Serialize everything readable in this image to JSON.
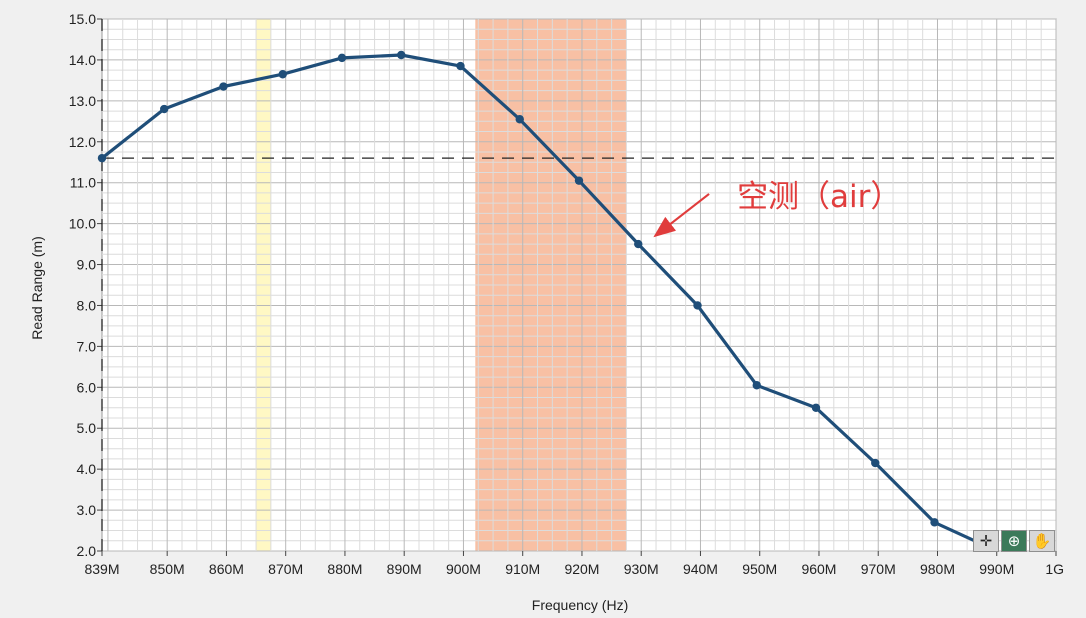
{
  "chart_data": {
    "type": "line",
    "xlabel": "Frequency (Hz)",
    "ylabel": "Read Range (m)",
    "xlim": [
      839,
      1000
    ],
    "ylim": [
      2.0,
      15.0
    ],
    "x_ticks": [
      {
        "value": 839,
        "label": "839M"
      },
      {
        "value": 850,
        "label": "850M"
      },
      {
        "value": 860,
        "label": "860M"
      },
      {
        "value": 870,
        "label": "870M"
      },
      {
        "value": 880,
        "label": "880M"
      },
      {
        "value": 890,
        "label": "890M"
      },
      {
        "value": 900,
        "label": "900M"
      },
      {
        "value": 910,
        "label": "910M"
      },
      {
        "value": 920,
        "label": "920M"
      },
      {
        "value": 930,
        "label": "930M"
      },
      {
        "value": 940,
        "label": "940M"
      },
      {
        "value": 950,
        "label": "950M"
      },
      {
        "value": 960,
        "label": "960M"
      },
      {
        "value": 970,
        "label": "970M"
      },
      {
        "value": 980,
        "label": "980M"
      },
      {
        "value": 990,
        "label": "990M"
      },
      {
        "value": 1000,
        "label": "1G"
      }
    ],
    "y_ticks": [
      {
        "value": 2,
        "label": "2.0"
      },
      {
        "value": 3,
        "label": "3.0"
      },
      {
        "value": 4,
        "label": "4.0"
      },
      {
        "value": 5,
        "label": "5.0"
      },
      {
        "value": 6,
        "label": "6.0"
      },
      {
        "value": 7,
        "label": "7.0"
      },
      {
        "value": 8,
        "label": "8.0"
      },
      {
        "value": 9,
        "label": "9.0"
      },
      {
        "value": 10,
        "label": "10.0"
      },
      {
        "value": 11,
        "label": "11.0"
      },
      {
        "value": 12,
        "label": "12.0"
      },
      {
        "value": 13,
        "label": "13.0"
      },
      {
        "value": 14,
        "label": "14.0"
      },
      {
        "value": 15,
        "label": "15.0"
      }
    ],
    "series": [
      {
        "color": "#1f4e79",
        "x": [
          839,
          849.5,
          859.5,
          869.5,
          879.5,
          889.5,
          899.5,
          909.5,
          919.5,
          929.5,
          939.5,
          949.5,
          959.5,
          969.5,
          979.5,
          987
        ],
        "y": [
          11.6,
          12.8,
          13.35,
          13.65,
          14.05,
          14.12,
          13.85,
          12.55,
          11.05,
          9.5,
          8.0,
          6.05,
          5.5,
          4.15,
          2.7,
          2.2
        ]
      }
    ],
    "highlight_bands": [
      {
        "x": [
          865,
          867.5
        ],
        "color": "#fff8c4"
      },
      {
        "x": [
          902,
          927.5
        ],
        "color": "#f8c0a4"
      }
    ],
    "reference_line": {
      "y": 11.6,
      "style": "dashed",
      "color": "#222222"
    },
    "annotation": {
      "text": "空测（air）",
      "arrow_to": {
        "x": 932,
        "y": 9.65
      },
      "color": "#e03c3c"
    },
    "grid": {
      "major": true,
      "minor": true
    },
    "plot_background": "#ffffff"
  },
  "toolbar": {
    "cursor_tool": "✛",
    "zoom_tool": "⊕",
    "pan_tool": "✋"
  }
}
